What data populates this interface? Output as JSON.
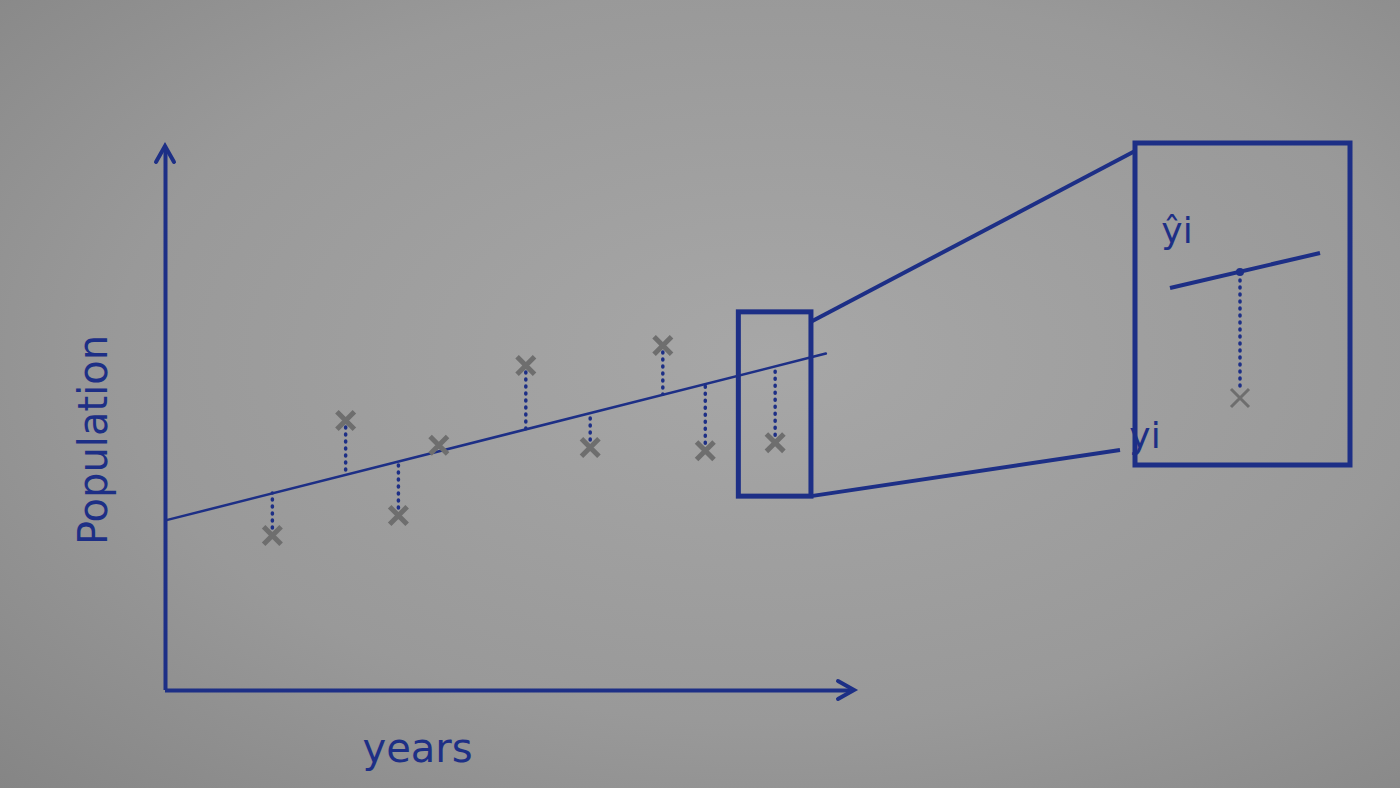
{
  "chart_data": {
    "type": "scatter",
    "x_label": "years",
    "y_label": "Population",
    "xlim": [
      0,
      100
    ],
    "ylim": [
      0,
      100
    ],
    "tick_labels": false,
    "grid": false,
    "series": [
      {
        "type": "scatter",
        "color": "#6e6e6e",
        "marker": "x",
        "line_style": "dotted",
        "x": [
          15.6,
          26.3,
          34.0,
          39.9,
          52.6,
          62.0,
          72.6,
          78.8,
          89.0
        ],
        "values": [
          28.7,
          50.0,
          32.4,
          45.4,
          60.2,
          45.0,
          63.9,
          44.4,
          45.9
        ]
      },
      {
        "type": "line",
        "color": "#1d2f86",
        "line_style": "solid",
        "x": [
          0,
          96.4
        ],
        "values": [
          31.5,
          62.4
        ]
      }
    ],
    "annotations": [
      "ŷi",
      "yi"
    ]
  }
}
